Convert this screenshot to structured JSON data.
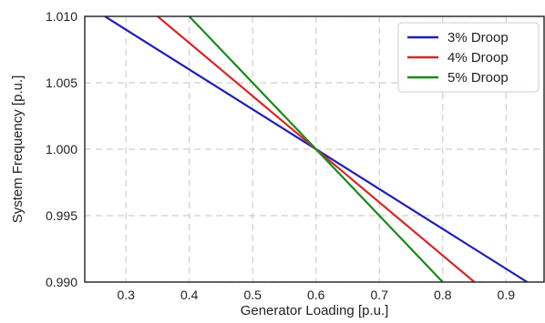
{
  "chart_data": {
    "type": "line",
    "title": "",
    "xlabel": "Generator Loading [p.u.]",
    "ylabel": "System Frequency [p.u.]",
    "xlim": [
      0.235,
      0.96
    ],
    "ylim": [
      0.99,
      1.01
    ],
    "xticks": [
      0.3,
      0.4,
      0.5,
      0.6,
      0.7,
      0.8,
      0.9
    ],
    "xtick_labels": [
      "0.3",
      "0.4",
      "0.5",
      "0.6",
      "0.7",
      "0.8",
      "0.9"
    ],
    "yticks": [
      0.99,
      0.995,
      1.0,
      1.005,
      1.01
    ],
    "ytick_labels": [
      "0.990",
      "0.995",
      "1.000",
      "1.005",
      "1.010"
    ],
    "grid": true,
    "legend_position": "top-right",
    "series": [
      {
        "name": "3% Droop",
        "color": "#1f1fb4",
        "x": [
          0.2667,
          0.9333
        ],
        "y": [
          1.01,
          0.99
        ]
      },
      {
        "name": "4% Droop",
        "color": "#d62728",
        "x": [
          0.35,
          0.85
        ],
        "y": [
          1.01,
          0.99
        ]
      },
      {
        "name": "5% Droop",
        "color": "#1a8a1a",
        "x": [
          0.4,
          0.8
        ],
        "y": [
          1.01,
          0.99
        ]
      }
    ]
  }
}
